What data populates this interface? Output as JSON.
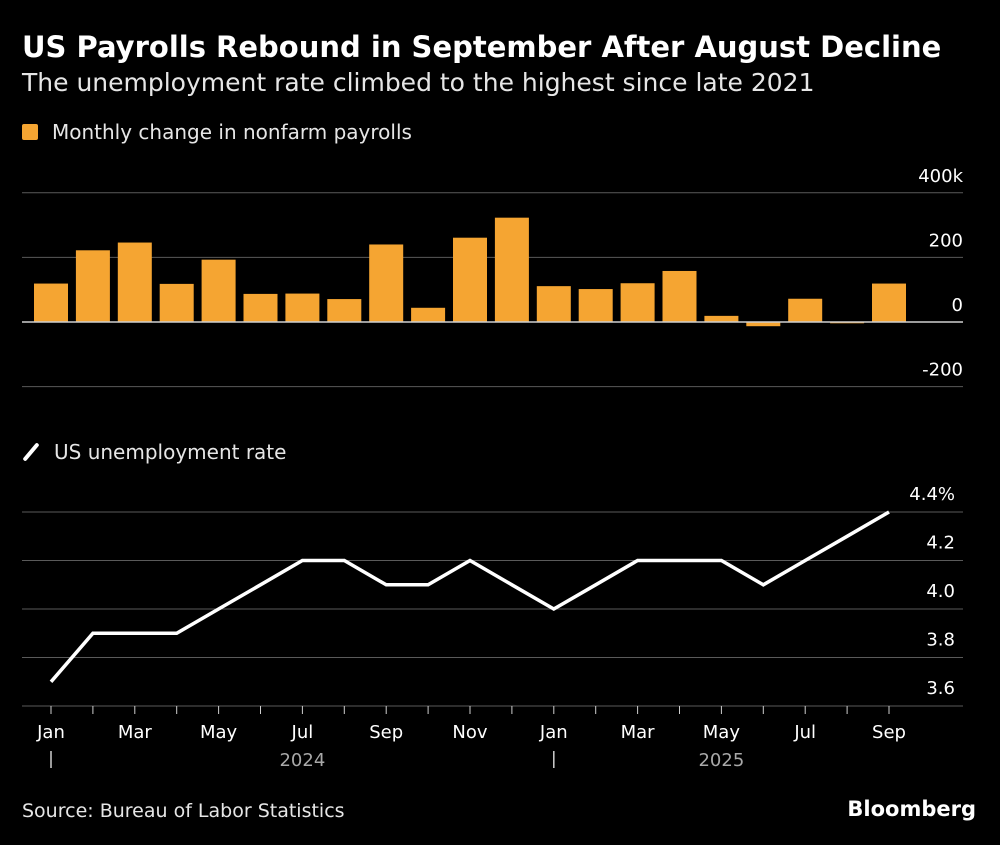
{
  "title": "US Payrolls Rebound in September After August Decline",
  "subtitle": "The unemployment rate climbed to the highest since late 2021",
  "source": "Source: Bureau of Labor Statistics",
  "brand": "Bloomberg",
  "colors": {
    "bar": "#f5a532",
    "line": "#ffffff",
    "grid": "#5a5a5a",
    "background": "#000000"
  },
  "chart_data": [
    {
      "type": "bar",
      "legend": "Monthly change in nonfarm payrolls",
      "months": [
        "Jan 2024",
        "Feb 2024",
        "Mar 2024",
        "Apr 2024",
        "May 2024",
        "Jun 2024",
        "Jul 2024",
        "Aug 2024",
        "Sep 2024",
        "Oct 2024",
        "Nov 2024",
        "Dec 2024",
        "Jan 2025",
        "Feb 2025",
        "Mar 2025",
        "Apr 2025",
        "May 2025",
        "Jun 2025",
        "Jul 2025",
        "Aug 2025",
        "Sep 2025"
      ],
      "values": [
        119,
        222,
        246,
        118,
        193,
        87,
        88,
        71,
        240,
        44,
        261,
        323,
        111,
        102,
        120,
        158,
        19,
        -13,
        72,
        -4,
        119
      ],
      "yticks": [
        {
          "value": 400,
          "label": "400k"
        },
        {
          "value": 200,
          "label": "200"
        },
        {
          "value": 0,
          "label": "0"
        },
        {
          "value": -200,
          "label": "-200"
        }
      ],
      "ylim": [
        -200,
        400
      ]
    },
    {
      "type": "line",
      "legend": "US unemployment rate",
      "months": [
        "Jan 2024",
        "Feb 2024",
        "Mar 2024",
        "Apr 2024",
        "May 2024",
        "Jun 2024",
        "Jul 2024",
        "Aug 2024",
        "Sep 2024",
        "Oct 2024",
        "Nov 2024",
        "Dec 2024",
        "Jan 2025",
        "Feb 2025",
        "Mar 2025",
        "Apr 2025",
        "May 2025",
        "Jun 2025",
        "Jul 2025",
        "Aug 2025",
        "Sep 2025"
      ],
      "values": [
        3.7,
        3.9,
        3.9,
        3.9,
        4.0,
        4.1,
        4.2,
        4.2,
        4.1,
        4.1,
        4.2,
        4.1,
        4.0,
        4.1,
        4.2,
        4.2,
        4.2,
        4.1,
        4.2,
        4.3,
        4.4
      ],
      "yticks": [
        {
          "value": 4.4,
          "label": "4.4%"
        },
        {
          "value": 4.2,
          "label": "4.2"
        },
        {
          "value": 4.0,
          "label": "4.0"
        },
        {
          "value": 3.8,
          "label": "3.8"
        },
        {
          "value": 3.6,
          "label": "3.6"
        }
      ],
      "ylim": [
        3.6,
        4.4
      ]
    }
  ],
  "x_axis": {
    "tick_labels": [
      "Jan",
      "Mar",
      "May",
      "Jul",
      "Sep",
      "Nov",
      "Jan",
      "Mar",
      "May",
      "Jul",
      "Sep"
    ],
    "tick_months": [
      0,
      2,
      4,
      6,
      8,
      10,
      12,
      14,
      16,
      18,
      20
    ],
    "years": [
      {
        "label": "2024",
        "center_month": 6
      },
      {
        "label": "2025",
        "center_month": 16
      }
    ],
    "year_dividers": [
      0,
      12
    ]
  }
}
